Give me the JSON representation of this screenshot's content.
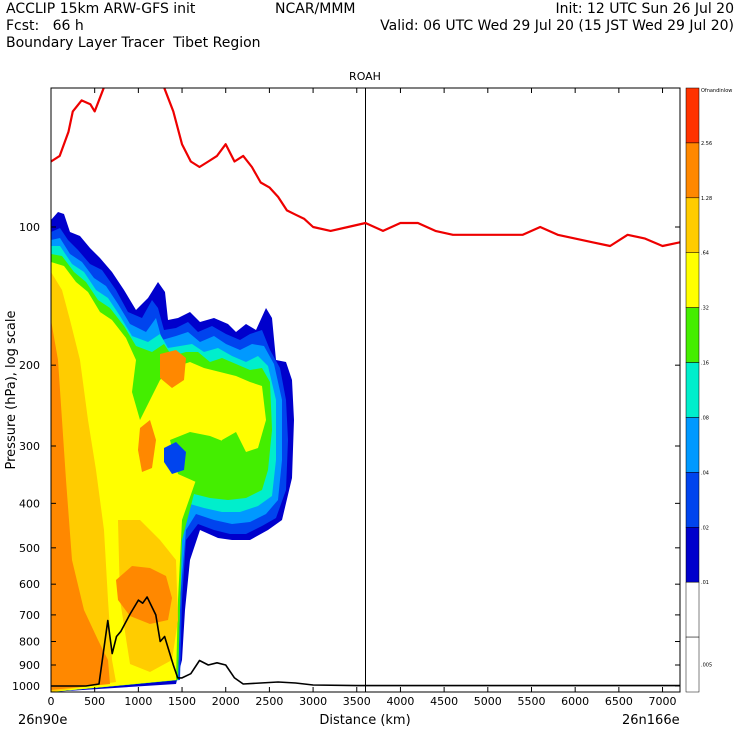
{
  "header": {
    "left_line1": "ACCLIP 15km ARW-GFS init",
    "center_line1": "NCAR/MMM",
    "right_line1": "Init: 12 UTC Sun 26 Jul 20",
    "left_line2": "Fcst:   66 h",
    "right_line2": "Valid: 06 UTC Wed 29 Jul 20 (15 JST Wed 29 Jul 20)",
    "left_line3": "Boundary Layer Tracer  Tibet Region"
  },
  "chart_data": {
    "type": "heatmap",
    "title": "ROAH",
    "xlabel": "Distance (km)",
    "ylabel": "Pressure (hPa), log scale",
    "x_range": [
      0,
      7200
    ],
    "x_ticks": [
      0,
      500,
      1000,
      1500,
      2000,
      2500,
      3000,
      3500,
      4000,
      4500,
      5000,
      5500,
      6000,
      6500,
      7000
    ],
    "y_scale": "log",
    "y_ticks": [
      100,
      200,
      300,
      400,
      500,
      600,
      700,
      800,
      900,
      1000
    ],
    "start_label": "26n90e",
    "end_label": "26n166e",
    "vertical_marker_km": 3600,
    "colorbar": {
      "levels": [
        "Ofnandinlow",
        "2.56",
        "1.28",
        ".64",
        ".32",
        ".16",
        ".08",
        ".04",
        ".02",
        ".01",
        ".005"
      ],
      "colors": [
        "#ff3300",
        "#ff8800",
        "#ffcc00",
        "#ffff00",
        "#44ee00",
        "#00eecc",
        "#0099ff",
        "#0044ee",
        "#0000cc",
        "#ffffff",
        "#ffffff"
      ]
    },
    "tropopause_line": {
      "color": "#ee0000",
      "x": [
        0,
        100,
        200,
        250,
        350,
        450,
        500,
        600,
        700,
        800,
        900,
        1000,
        1100,
        1200,
        1300,
        1400,
        1500,
        1600,
        1700,
        1800,
        1900,
        2000,
        2100,
        2200,
        2300,
        2400,
        2500,
        2600,
        2700,
        2800,
        2900,
        3000,
        3200,
        3400,
        3600,
        3800,
        4000,
        4200,
        4400,
        4600,
        4800,
        5000,
        5200,
        5400,
        5600,
        5800,
        6000,
        6200,
        6400,
        6600,
        6800,
        7000,
        7200
      ],
      "y": [
        72,
        70,
        62,
        56,
        53,
        54,
        56,
        50,
        44,
        40,
        38,
        36,
        37,
        40,
        50,
        56,
        66,
        72,
        74,
        72,
        70,
        66,
        72,
        70,
        74,
        80,
        82,
        86,
        92,
        94,
        96,
        100,
        102,
        100,
        98,
        102,
        98,
        98,
        102,
        104,
        104,
        104,
        104,
        104,
        100,
        104,
        106,
        108,
        110,
        104,
        106,
        110,
        108
      ]
    },
    "terrain_line": {
      "color": "#000000",
      "x": [
        0,
        200,
        400,
        550,
        650,
        700,
        750,
        800,
        900,
        1000,
        1050,
        1100,
        1200,
        1250,
        1300,
        1400,
        1450,
        1500,
        1600,
        1700,
        1800,
        1900,
        2000,
        2100,
        2200,
        2400,
        2600,
        2800,
        3000,
        3500,
        4000,
        5000,
        6000,
        7000,
        7200
      ],
      "y": [
        1000,
        1000,
        1000,
        990,
        720,
        850,
        780,
        760,
        700,
        650,
        660,
        640,
        700,
        800,
        780,
        900,
        960,
        960,
        940,
        880,
        900,
        890,
        900,
        960,
        990,
        985,
        980,
        985,
        995,
        998,
        998,
        998,
        998,
        998,
        998
      ]
    }
  }
}
